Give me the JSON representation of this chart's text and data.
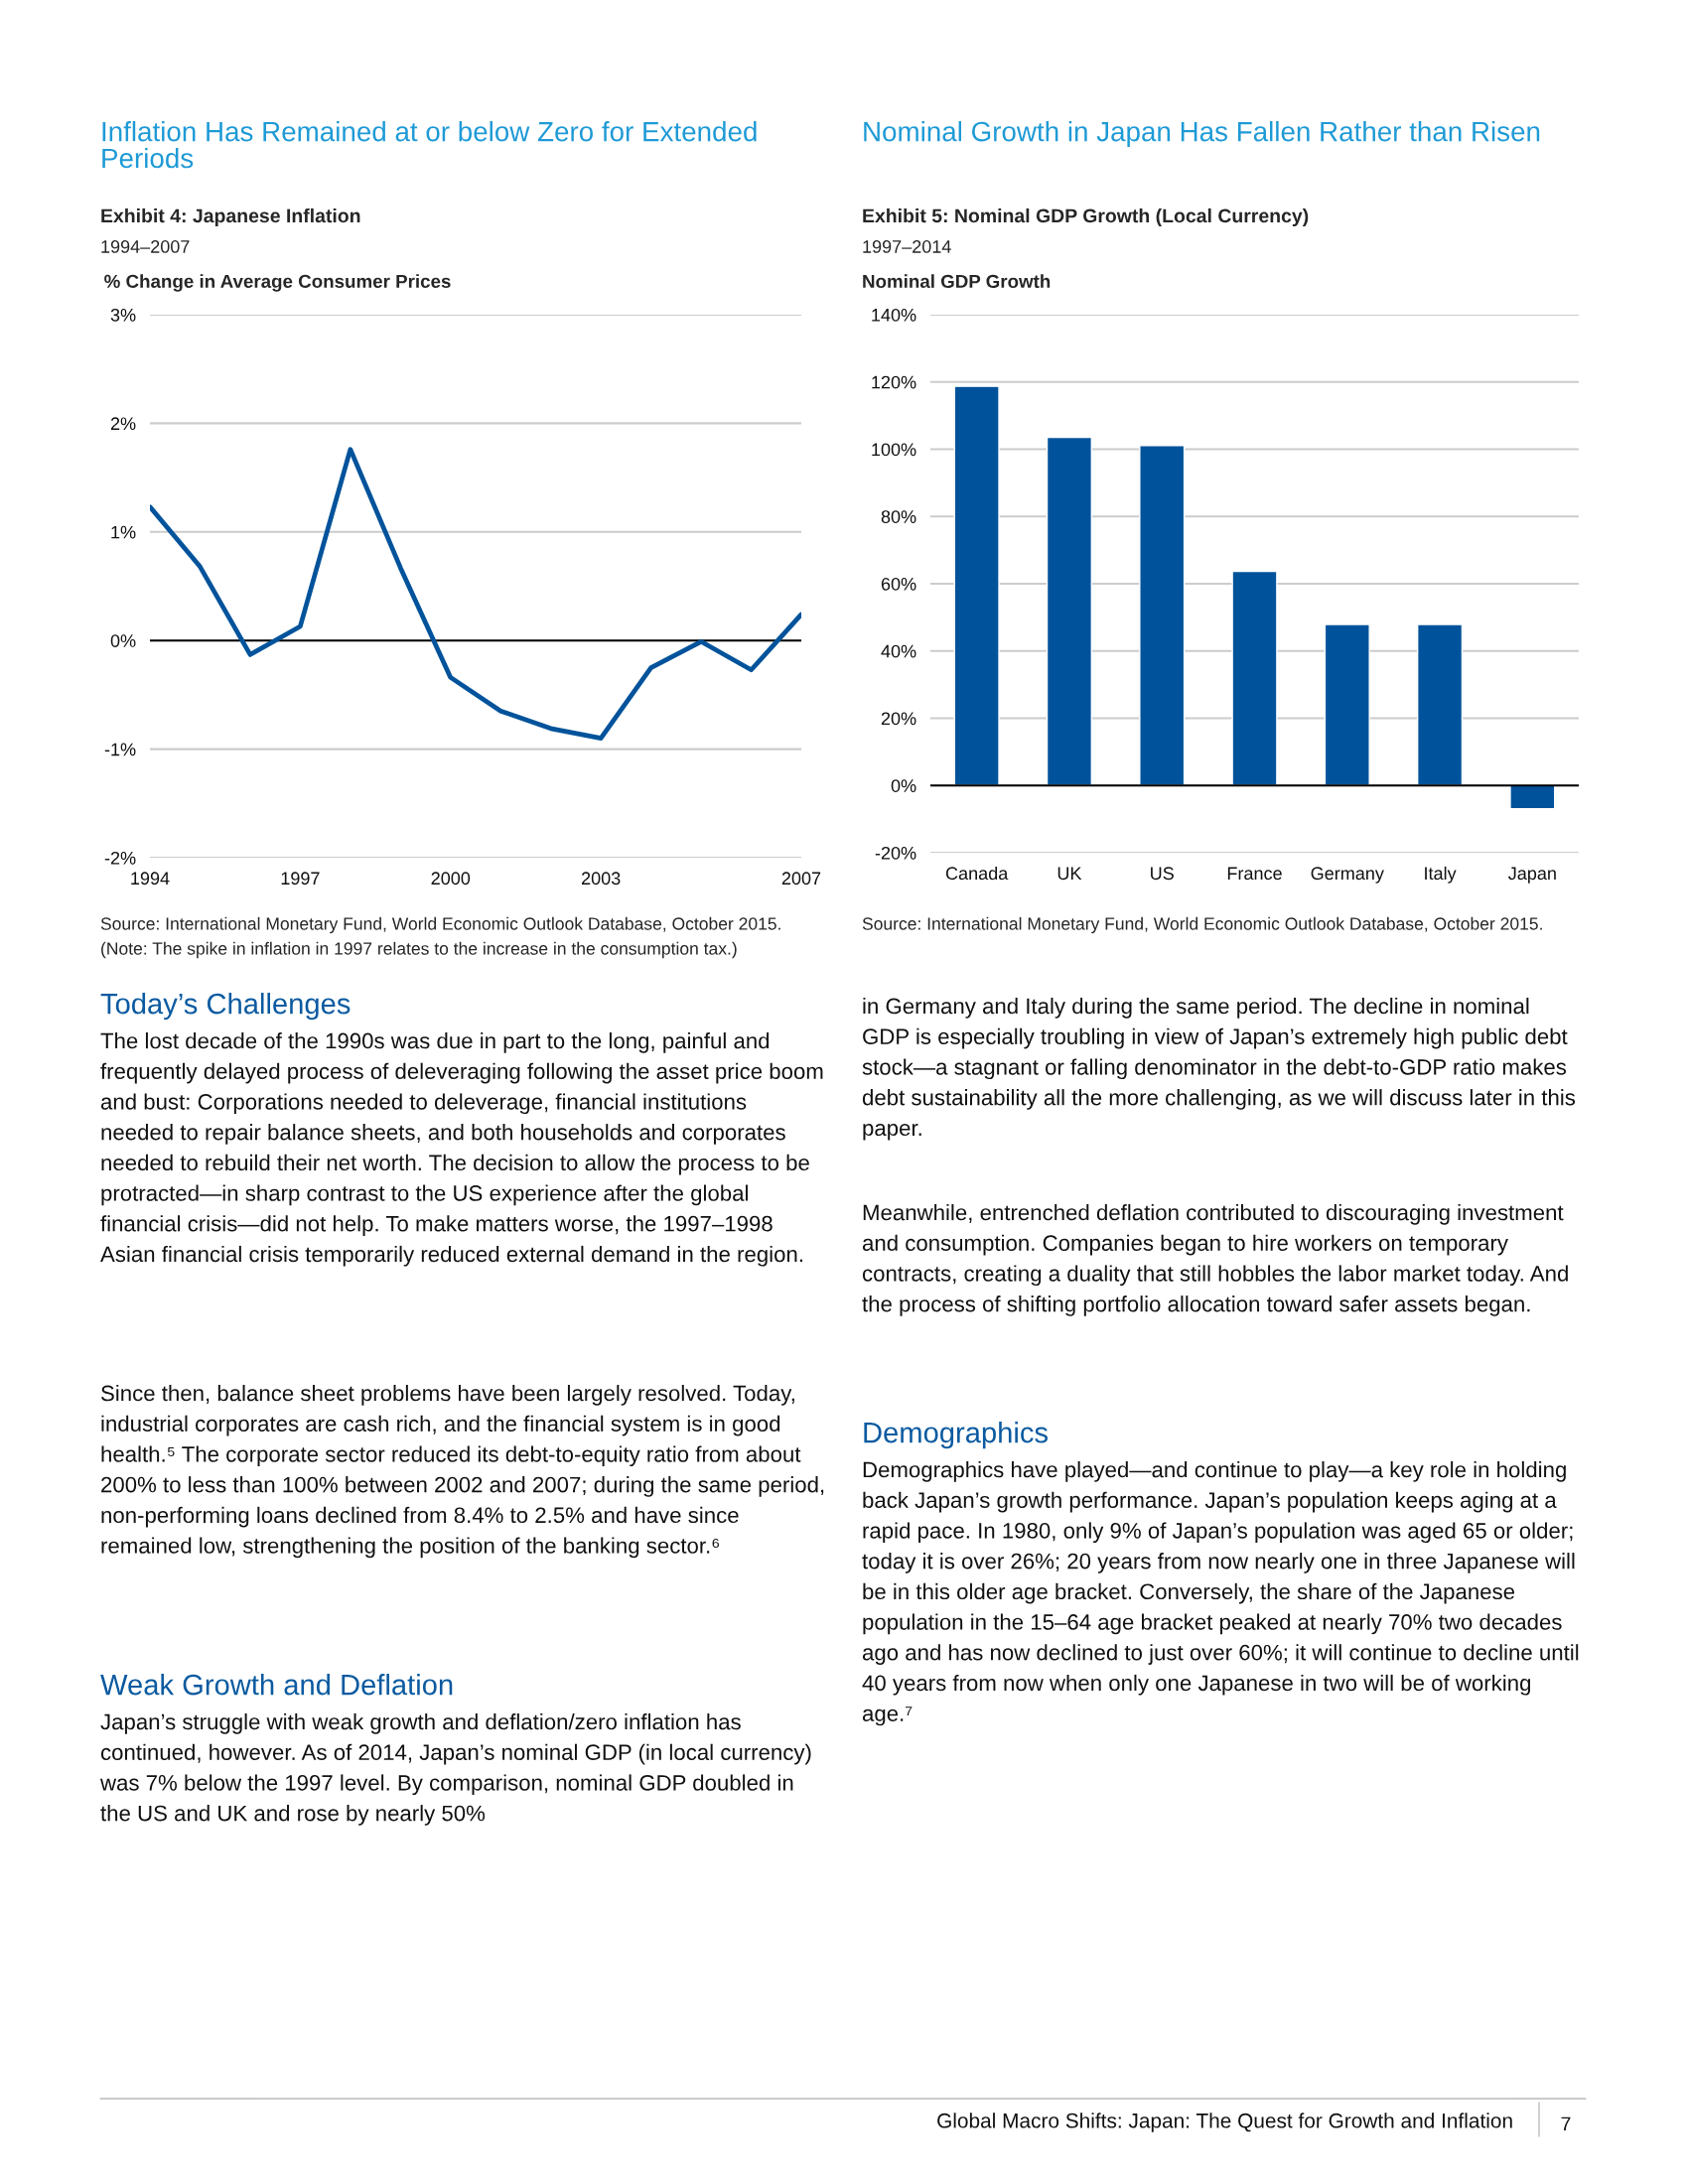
{
  "chart_data": [
    {
      "type": "line",
      "title": "Inflation Has Remained at or below Zero for Extended Periods",
      "subtitle": "Exhibit 4: Japanese Inflation",
      "ylabel": "% Change in Average Consumer Prices",
      "annotations": [
        "1994–2007",
        "Source: International Monetary Fund, World Economic Outlook Database, October 2015.",
        "(Note: The spike in inflation in 1997 relates to the increase in the consumption tax.)"
      ],
      "x": [
        1994,
        1995,
        1996,
        1997,
        1998,
        1999,
        2000,
        2001,
        2002,
        2003,
        2004,
        2005,
        2006,
        2007
      ],
      "series": [
        {
          "color": "#00539b",
          "values": [
            1.23,
            0.68,
            -0.13,
            0.13,
            1.76,
            0.67,
            -0.34,
            -0.65,
            -0.81,
            -0.9,
            -0.25,
            -0.01,
            -0.27,
            0.24
          ]
        }
      ],
      "xlim": [
        1994,
        2007
      ],
      "xticks": [
        1994,
        1997,
        2000,
        2003,
        2007
      ],
      "ylim": [
        -2,
        3
      ],
      "yticks": [
        {
          "value": -2,
          "label": "-2%"
        },
        {
          "value": -1,
          "label": "-1%"
        },
        {
          "value": 0,
          "label": "0%"
        },
        {
          "value": 1,
          "label": "1%"
        },
        {
          "value": 2,
          "label": "2%"
        },
        {
          "value": 3,
          "label": "3%"
        }
      ],
      "grid": "y",
      "ref_lines": [
        {
          "axis": "y",
          "value": 0,
          "color": "#000000"
        }
      ]
    },
    {
      "type": "bar",
      "title": "Nominal Growth in Japan Has Fallen Rather than Risen",
      "subtitle": "Exhibit 5: Nominal GDP Growth (Local Currency)",
      "ylabel": "Nominal GDP Growth",
      "annotations": [
        "1997–2014",
        "Source: International Monetary Fund, World Economic Outlook Database, October 2015."
      ],
      "categories": [
        "Canada",
        "UK",
        "US",
        "France",
        "Germany",
        "Italy",
        "Japan"
      ],
      "series": [
        {
          "color": "#00539b",
          "values": [
            118.7,
            103.5,
            101.1,
            63.7,
            47.9,
            47.9,
            -6.9
          ]
        }
      ],
      "ylim": [
        -20,
        140
      ],
      "yticks": [
        {
          "value": -20,
          "label": "-20%"
        },
        {
          "value": 0,
          "label": "0%"
        },
        {
          "value": 20,
          "label": "20%"
        },
        {
          "value": 40,
          "label": "40%"
        },
        {
          "value": 60,
          "label": "60%"
        },
        {
          "value": 80,
          "label": "80%"
        },
        {
          "value": 100,
          "label": "100%"
        },
        {
          "value": 120,
          "label": "120%"
        },
        {
          "value": 140,
          "label": "140%"
        }
      ],
      "grid": "y",
      "ref_lines": [
        {
          "axis": "y",
          "value": 0,
          "color": "#000000"
        }
      ]
    },
    {
      "type": "other",
      "title": "Today’s Challenges",
      "annotations": [
        "The lost decade of the 1990s was due in part to the long, painful and frequently delayed process of deleveraging following the asset price boom and bust: Corporations needed to deleverage, financial institutions needed to repair balance sheets, and both households and corporates needed to rebuild their net worth. The decision to allow the process to be protracted—in sharp contrast to the US experience after the global financial crisis—did not help. To make matters worse, the 1997–1998 Asian financial crisis temporarily reduced external demand in the region.",
        "Since then, balance sheet problems have been largely resolved. Today, industrial corporates are cash rich, and the financial system is in good health.⁵ The corporate sector reduced its debt-to-equity ratio from about 200% to less than 100% between 2002 and 2007; during the same period, non-performing loans declined from 8.4% to 2.5% and have since remained low, strengthening the position of the banking sector.⁶"
      ]
    },
    {
      "type": "other",
      "title": "Weak Growth and Deflation",
      "annotations": [
        "Japan’s struggle with weak growth and deflation/zero inflation has continued, however. As of 2014, Japan’s nominal GDP (in local currency) was 7% below the 1997 level. By comparison, nominal GDP doubled in the US and UK and rose by nearly 50%",
        "in Germany and Italy during the same period. The decline in nominal GDP is especially troubling in view of Japan’s extremely high public debt stock—a stagnant or falling denominator in the debt-to-GDP ratio makes debt sustainability all the more challenging, as we will discuss later in this paper.",
        "Meanwhile, entrenched deflation contributed to discouraging investment and consumption. Companies began to hire workers on temporary contracts, creating a duality that still hobbles the labor market today. And the process of shifting portfolio allocation toward safer assets began."
      ]
    },
    {
      "type": "other",
      "title": "Demographics",
      "annotations": [
        "Demographics have played—and continue to play—a key role in holding back Japan’s growth performance. Japan’s population keeps aging at a rapid pace. In 1980, only 9% of Japan’s population was aged 65 or older; today it is over 26%; 20 years from now nearly one in three Japanese will be in this older age bracket. Conversely, the share of the Japanese population in the 15–64 age bracket peaked at nearly 70% two decades ago and has now declined to just over 60%; it will continue to decline until 40 years from now when only one Japanese in two will be of working age.⁷"
      ]
    },
    {
      "type": "other",
      "annotations": [
        "Global Macro Shifts: Japan: The Quest for Growth and Inflation",
        "7"
      ]
    }
  ]
}
